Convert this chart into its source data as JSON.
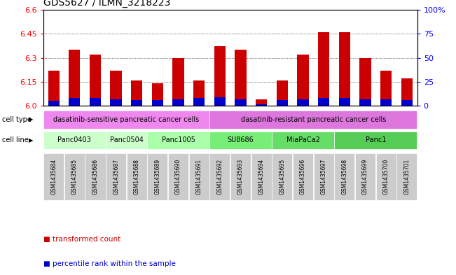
{
  "title": "GDS5627 / ILMN_3218223",
  "samples": [
    "GSM1435684",
    "GSM1435685",
    "GSM1435686",
    "GSM1435687",
    "GSM1435688",
    "GSM1435689",
    "GSM1435690",
    "GSM1435691",
    "GSM1435692",
    "GSM1435693",
    "GSM1435694",
    "GSM1435695",
    "GSM1435696",
    "GSM1435697",
    "GSM1435698",
    "GSM1435699",
    "GSM1435700",
    "GSM1435701"
  ],
  "transformed_count": [
    6.22,
    6.35,
    6.32,
    6.22,
    6.16,
    6.14,
    6.3,
    6.16,
    6.37,
    6.35,
    6.04,
    6.16,
    6.32,
    6.46,
    6.46,
    6.3,
    6.22,
    6.17
  ],
  "percentile_rank": [
    5,
    8,
    8,
    7,
    6,
    6,
    7,
    8,
    9,
    7,
    2,
    6,
    7,
    8,
    8,
    7,
    7,
    6
  ],
  "y_min": 6.0,
  "y_max": 6.6,
  "y_ticks": [
    6.0,
    6.15,
    6.3,
    6.45,
    6.6
  ],
  "y_right_ticks": [
    0,
    25,
    50,
    75,
    100
  ],
  "bar_color": "#cc0000",
  "percentile_color": "#0000cc",
  "cl_groups": [
    [
      0,
      3,
      "Panc0403",
      "#ccffcc"
    ],
    [
      3,
      5,
      "Panc0504",
      "#ccffcc"
    ],
    [
      5,
      8,
      "Panc1005",
      "#aaffaa"
    ],
    [
      8,
      11,
      "SU8686",
      "#77ee77"
    ],
    [
      11,
      14,
      "MiaPaCa2",
      "#66dd66"
    ],
    [
      14,
      18,
      "Panc1",
      "#55cc55"
    ]
  ],
  "ct_groups": [
    [
      0,
      8,
      "dasatinib-sensitive pancreatic cancer cells",
      "#ee88ee"
    ],
    [
      8,
      18,
      "dasatinib-resistant pancreatic cancer cells",
      "#dd77dd"
    ]
  ],
  "bar_width": 0.55,
  "tick_label_size": 6,
  "title_fontsize": 10
}
